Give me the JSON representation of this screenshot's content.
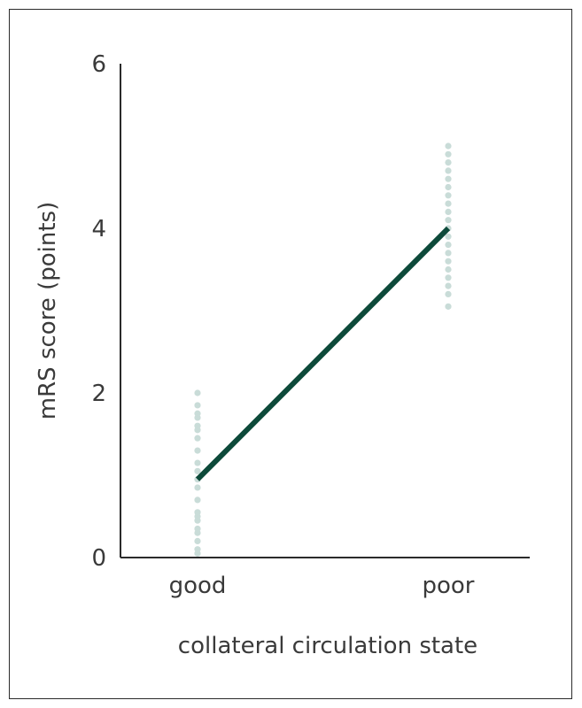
{
  "chart_data": {
    "type": "line",
    "title": "",
    "xlabel": "collateral circulation state",
    "ylabel": "mRS score (points)",
    "categories": [
      "good",
      "poor"
    ],
    "ylim": [
      0,
      6
    ],
    "yticks": [
      "0",
      "2",
      "4",
      "6"
    ],
    "grid": false,
    "line_color": "#0d4a3a",
    "point_color": "#c9dcd8",
    "series": [
      {
        "values": [
          0.95,
          4.0
        ]
      }
    ],
    "points": [
      {
        "category": "good",
        "values": [
          0.05,
          0.1,
          0.2,
          0.3,
          0.35,
          0.45,
          0.5,
          0.55,
          0.7,
          0.85,
          0.95,
          1.05,
          1.15,
          1.3,
          1.45,
          1.55,
          1.6,
          1.7,
          1.75,
          1.85,
          2.0
        ]
      },
      {
        "category": "poor",
        "values": [
          3.05,
          3.2,
          3.3,
          3.4,
          3.5,
          3.6,
          3.7,
          3.8,
          3.9,
          4.0,
          4.1,
          4.2,
          4.3,
          4.4,
          4.5,
          4.6,
          4.7,
          4.8,
          4.9,
          5.0
        ]
      }
    ]
  }
}
